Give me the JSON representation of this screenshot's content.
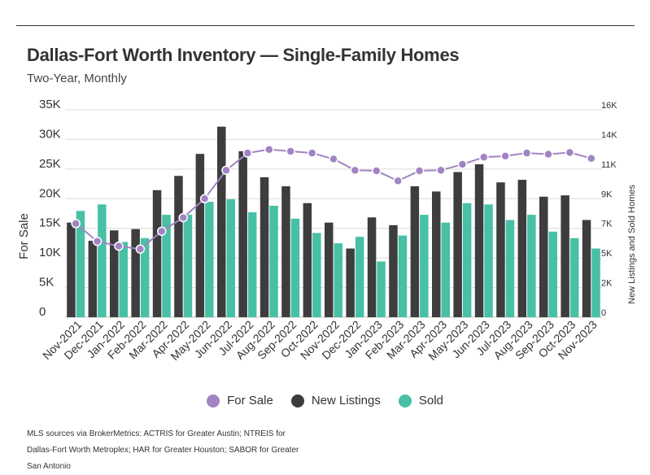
{
  "header": {
    "title": "Dallas-Fort Worth Inventory — Single-Family Homes",
    "subtitle": "Two-Year, Monthly"
  },
  "legend": [
    {
      "label": "For Sale",
      "color": "#a184c3"
    },
    {
      "label": "New Listings",
      "color": "#3d3d3d"
    },
    {
      "label": "Sold",
      "color": "#48c0a5"
    }
  ],
  "footer": {
    "source": "MLS sources via BrokerMetrics: ACTRIS for Greater Austin; NTREIS for Dallas-Fort Worth Metroplex; HAR for Greater Houston; SABOR for Greater San Antonio"
  },
  "chart_data": {
    "type": "bar",
    "categories": [
      "Nov-2021",
      "Dec-2021",
      "Jan-2022",
      "Feb-2022",
      "Mar-2022",
      "Apr-2022",
      "May-2022",
      "Jun-2022",
      "Jul-2022",
      "Aug-2022",
      "Sep-2022",
      "Oct-2022",
      "Nov-2022",
      "Dec-2022",
      "Jan-2023",
      "Feb-2023",
      "Mar-2023",
      "Apr-2023",
      "May-2023",
      "Jun-2023",
      "Jul-2023",
      "Aug-2023",
      "Sep-2023",
      "Oct-2023",
      "Nov-2023"
    ],
    "ylabel": "For Sale",
    "y2label": "New Listings and Sold Homes",
    "ylim": [
      0,
      35000
    ],
    "y2lim": [
      0,
      16000
    ],
    "yticks": [
      "0",
      "5K",
      "10K",
      "15K",
      "20K",
      "25K",
      "30K",
      "35K"
    ],
    "y2ticks": [
      "0",
      "2K",
      "5K",
      "7K",
      "9K",
      "11K",
      "14K",
      "16K"
    ],
    "grid": true,
    "legend_position": "bottom",
    "series": [
      {
        "name": "For Sale",
        "type": "line",
        "axis": "left",
        "color": "#a184c3",
        "values": [
          15800,
          12800,
          12000,
          11500,
          14500,
          16800,
          20000,
          24800,
          27700,
          28300,
          28000,
          27700,
          26700,
          24800,
          24700,
          23000,
          24700,
          24800,
          25800,
          27000,
          27200,
          27700,
          27500,
          27800,
          26800
        ]
      },
      {
        "name": "New Listings",
        "type": "bar",
        "axis": "right",
        "color": "#3d3d3d",
        "values": [
          7300,
          5900,
          6700,
          6800,
          9800,
          10900,
          12600,
          14700,
          12800,
          10800,
          10100,
          8800,
          7300,
          5300,
          7700,
          7100,
          10100,
          9700,
          11200,
          11800,
          10400,
          10600,
          9300,
          9400,
          7500
        ]
      },
      {
        "name": "Sold",
        "type": "bar",
        "axis": "right",
        "color": "#48c0a5",
        "values": [
          8200,
          8700,
          5800,
          6100,
          7900,
          7900,
          8900,
          9100,
          8100,
          8600,
          7600,
          6500,
          5700,
          6200,
          4300,
          6300,
          7900,
          7300,
          8800,
          8700,
          7500,
          7900,
          6600,
          6100,
          5300
        ]
      }
    ]
  }
}
